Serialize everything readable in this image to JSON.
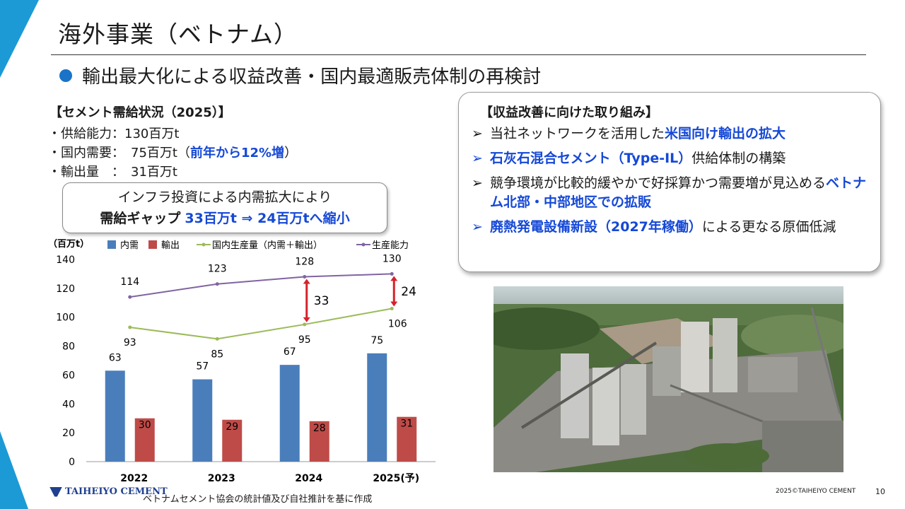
{
  "slide": {
    "title": "海外事業（ベトナム）",
    "subtitle": "輸出最大化による収益改善・国内最適販売体制の再検討",
    "page_number": "10",
    "copyright": "2025©TAIHEIYO CEMENT",
    "logo_text": "TAIHEIYO CEMENT",
    "source_note": "ベトナムセメント協会の統計値及び自社推計を基に作成"
  },
  "supply": {
    "heading": "【セメント需給状況（2025）】",
    "line1": "・供給能力：130百万t",
    "line2_prefix": "・国内需要：　75百万t（",
    "line2_highlight": "前年から12%増",
    "line2_suffix": "）",
    "line3": "・輸出量　：　31百万t"
  },
  "gap_box": {
    "line1": "インフラ投資による内需拡大により",
    "line2_bold": "需給ギャップ",
    "line2_blue": "33百万t ⇒ 24百万tへ縮小"
  },
  "initiatives": {
    "heading": "【収益改善に向けた取り組み】",
    "items": [
      {
        "pre": "当社ネットワークを活用した",
        "bold": "米国向け輸出の拡大",
        "post": "",
        "arrow_blue": false
      },
      {
        "pre": "",
        "bold": "石灰石混合セメント（Type-IL）",
        "post": "供給体制の構築",
        "arrow_blue": true
      },
      {
        "pre": "競争環境が比較的緩やかで好採算かつ需要増が見込める",
        "bold": "ベトナム北部・中部地区での拡販",
        "post": "",
        "arrow_blue": false
      },
      {
        "pre": "",
        "bold": "廃熱発電設備新設（2027年稼働）",
        "post": "による更なる原価低減",
        "arrow_blue": true
      }
    ]
  },
  "colors": {
    "accent": "#1c9ad6",
    "emphasis_blue": "#1548d6",
    "domestic_bar": "#4a7ebb",
    "export_bar": "#be4b48",
    "production_line": "#9bbb59",
    "capacity_line": "#8064a2",
    "gap_arrow": "#d6222b"
  },
  "chart_data": {
    "type": "bar",
    "unit_label": "（百万t）",
    "categories": [
      "2022",
      "2023",
      "2024",
      "2025(予)"
    ],
    "ylim": [
      0,
      140
    ],
    "yticks": [
      0,
      20,
      40,
      60,
      80,
      100,
      120,
      140
    ],
    "series": [
      {
        "name": "内需",
        "kind": "bar",
        "values": [
          63,
          57,
          67,
          75
        ]
      },
      {
        "name": "輸出",
        "kind": "bar",
        "values": [
          30,
          29,
          28,
          31
        ]
      },
      {
        "name": "国内生産量（内需＋輸出）",
        "kind": "line",
        "values": [
          93,
          85,
          95,
          106
        ]
      },
      {
        "name": "生産能力",
        "kind": "line",
        "values": [
          114,
          123,
          128,
          130
        ]
      }
    ],
    "gap_annotations": [
      {
        "category": "2024",
        "value": 33
      },
      {
        "category": "2025(予)",
        "value": 24
      }
    ]
  }
}
